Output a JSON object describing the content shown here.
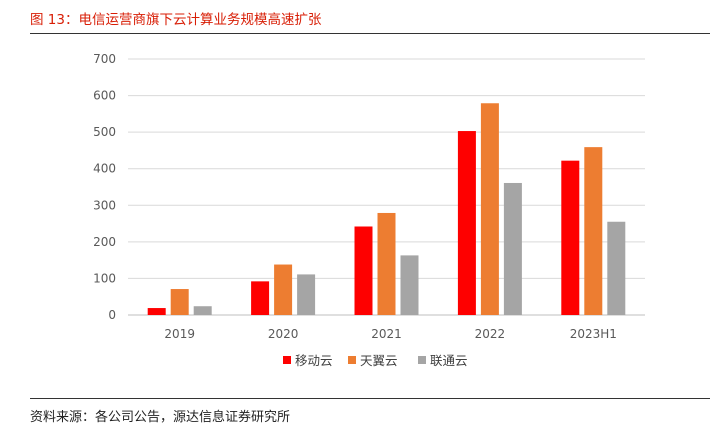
{
  "figure": {
    "title": "图 13：电信运营商旗下云计算业务规模高速扩张",
    "source": "资料来源：各公司公告，源达信息证券研究所"
  },
  "colors": {
    "mobile": "#fe0000",
    "tianyi": "#ed7d31",
    "unicom": "#a5a5a5"
  },
  "chart_data": {
    "type": "bar",
    "categories": [
      "2019",
      "2020",
      "2021",
      "2022",
      "2023H1"
    ],
    "series": [
      {
        "name": "移动云",
        "values": [
          19,
          92,
          242,
          503,
          422
        ]
      },
      {
        "name": "天翼云",
        "values": [
          71,
          138,
          279,
          579,
          459
        ]
      },
      {
        "name": "联通云",
        "values": [
          24,
          111,
          163,
          361,
          255
        ]
      }
    ],
    "ylim": [
      0,
      700
    ],
    "yticks": [
      "0",
      "100",
      "200",
      "300",
      "400",
      "500",
      "600",
      "700"
    ],
    "grid": true,
    "legend_position": "bottom"
  }
}
